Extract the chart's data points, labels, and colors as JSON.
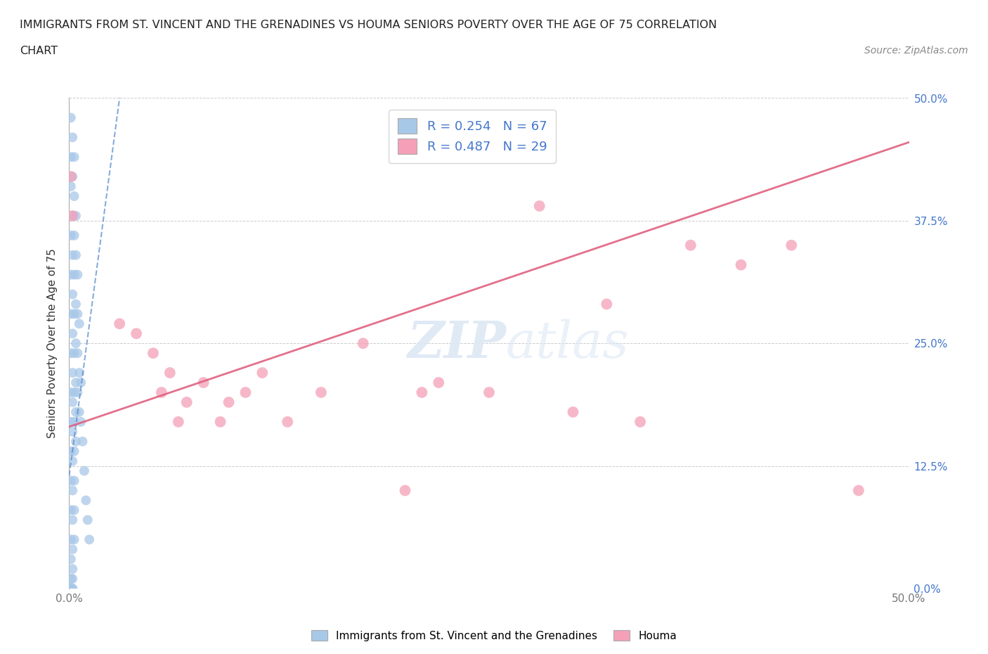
{
  "title_line1": "IMMIGRANTS FROM ST. VINCENT AND THE GRENADINES VS HOUMA SENIORS POVERTY OVER THE AGE OF 75 CORRELATION",
  "title_line2": "CHART",
  "source_text": "Source: ZipAtlas.com",
  "ylabel": "Seniors Poverty Over the Age of 75",
  "xlim": [
    0,
    0.5
  ],
  "ylim": [
    0,
    0.5
  ],
  "ytick_vals": [
    0,
    0.125,
    0.25,
    0.375,
    0.5
  ],
  "ytick_labels": [
    "0.0%",
    "12.5%",
    "25.0%",
    "37.5%",
    "50.0%"
  ],
  "xtick_vals": [
    0,
    0.5
  ],
  "xtick_labels": [
    "0.0%",
    "50.0%"
  ],
  "series1_color": "#a8c8e8",
  "series2_color": "#f4a0b8",
  "trend1_color": "#5588cc",
  "trend2_color": "#e06080",
  "series1_label": "Immigrants from St. Vincent and the Grenadines",
  "series2_label": "Houma",
  "R1": 0.254,
  "N1": 67,
  "R2": 0.487,
  "N2": 29,
  "watermark_zip": "ZIP",
  "watermark_atlas": "atlas",
  "background_color": "#ffffff",
  "legend_text_color": "#4477cc",
  "right_axis_color": "#4477cc",
  "series1_x": [
    0.001,
    0.001,
    0.001,
    0.001,
    0.001,
    0.001,
    0.001,
    0.001,
    0.001,
    0.001,
    0.001,
    0.001,
    0.001,
    0.001,
    0.001,
    0.001,
    0.001,
    0.002,
    0.002,
    0.002,
    0.002,
    0.002,
    0.002,
    0.002,
    0.002,
    0.002,
    0.002,
    0.002,
    0.002,
    0.002,
    0.002,
    0.002,
    0.002,
    0.002,
    0.003,
    0.003,
    0.003,
    0.003,
    0.003,
    0.003,
    0.003,
    0.003,
    0.003,
    0.003,
    0.003,
    0.003,
    0.004,
    0.004,
    0.004,
    0.004,
    0.004,
    0.004,
    0.004,
    0.005,
    0.005,
    0.005,
    0.005,
    0.006,
    0.006,
    0.006,
    0.007,
    0.007,
    0.008,
    0.009,
    0.01,
    0.011,
    0.012
  ],
  "series1_y": [
    0.48,
    0.44,
    0.41,
    0.36,
    0.32,
    0.28,
    0.24,
    0.2,
    0.17,
    0.14,
    0.11,
    0.08,
    0.05,
    0.03,
    0.01,
    0.0,
    0.0,
    0.46,
    0.42,
    0.38,
    0.34,
    0.3,
    0.26,
    0.22,
    0.19,
    0.16,
    0.13,
    0.1,
    0.07,
    0.04,
    0.02,
    0.01,
    0.0,
    0.0,
    0.44,
    0.4,
    0.36,
    0.32,
    0.28,
    0.24,
    0.2,
    0.17,
    0.14,
    0.11,
    0.08,
    0.05,
    0.38,
    0.34,
    0.29,
    0.25,
    0.21,
    0.18,
    0.15,
    0.32,
    0.28,
    0.24,
    0.2,
    0.27,
    0.22,
    0.18,
    0.21,
    0.17,
    0.15,
    0.12,
    0.09,
    0.07,
    0.05
  ],
  "series2_x": [
    0.001,
    0.002,
    0.03,
    0.04,
    0.05,
    0.055,
    0.06,
    0.065,
    0.07,
    0.08,
    0.09,
    0.095,
    0.105,
    0.115,
    0.13,
    0.15,
    0.175,
    0.2,
    0.21,
    0.22,
    0.25,
    0.28,
    0.3,
    0.32,
    0.34,
    0.37,
    0.4,
    0.43,
    0.47
  ],
  "series2_y": [
    0.42,
    0.38,
    0.27,
    0.26,
    0.24,
    0.2,
    0.22,
    0.17,
    0.19,
    0.21,
    0.17,
    0.19,
    0.2,
    0.22,
    0.17,
    0.2,
    0.25,
    0.1,
    0.2,
    0.21,
    0.2,
    0.39,
    0.18,
    0.29,
    0.17,
    0.35,
    0.33,
    0.35,
    0.1
  ],
  "trend1_x": [
    0.0,
    0.03
  ],
  "trend1_y": [
    0.115,
    0.5
  ],
  "trend2_x": [
    0.0,
    0.5
  ],
  "trend2_y": [
    0.165,
    0.455
  ]
}
